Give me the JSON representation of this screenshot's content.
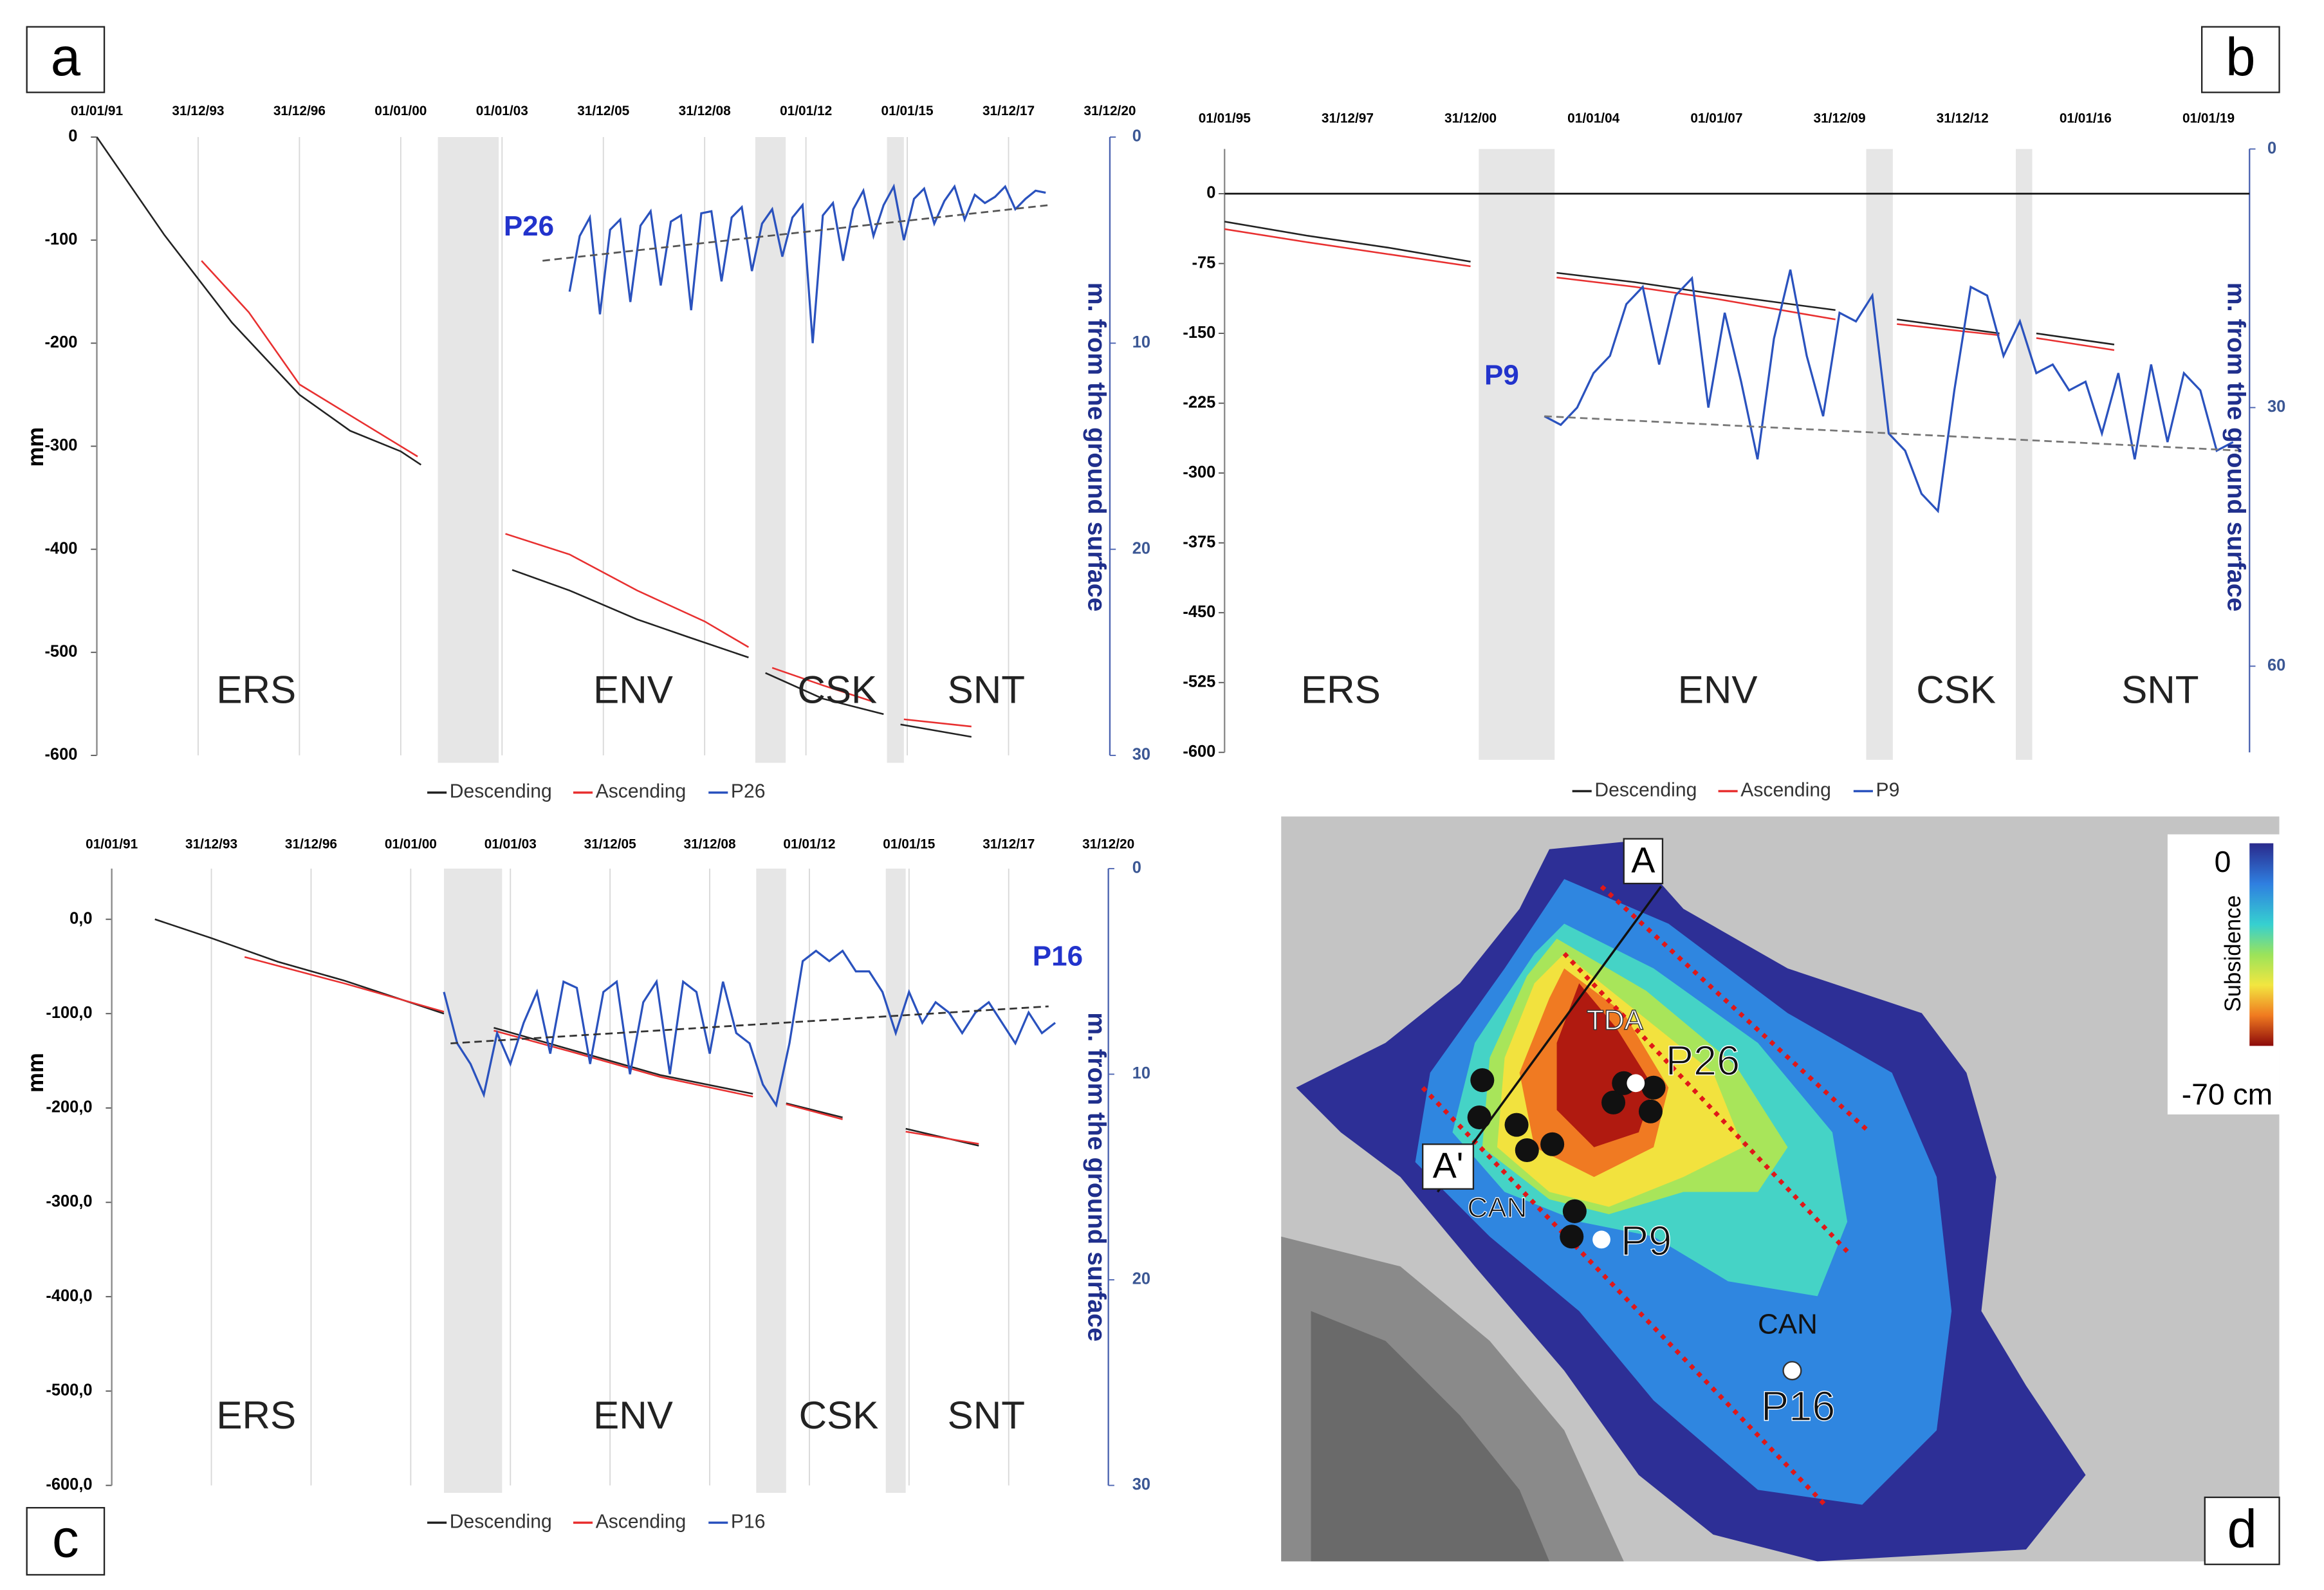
{
  "chart_data": [
    {
      "type": "line",
      "panel_label": "a",
      "point_label": "P26",
      "y_label": "mm",
      "y2_label": "m. from the ground surface",
      "annotations": [
        "ERS",
        "ENV",
        "CSK",
        "SNT"
      ],
      "xlim": [
        1991.0,
        2021.0
      ],
      "xticks": [
        {
          "value": 1991.0,
          "label": "01/01/91"
        },
        {
          "value": 1994.0,
          "label": "31/12/93"
        },
        {
          "value": 1997.0,
          "label": "31/12/96"
        },
        {
          "value": 2000.0,
          "label": "01/01/00"
        },
        {
          "value": 2003.0,
          "label": "01/01/03"
        },
        {
          "value": 2006.0,
          "label": "31/12/05"
        },
        {
          "value": 2009.0,
          "label": "31/12/08"
        },
        {
          "value": 2012.0,
          "label": "01/01/12"
        },
        {
          "value": 2015.0,
          "label": "01/01/15"
        },
        {
          "value": 2018.0,
          "label": "31/12/17"
        },
        {
          "value": 2021.0,
          "label": "31/12/20"
        }
      ],
      "ylim": [
        -600,
        0
      ],
      "yticks": [
        0,
        -100,
        -200,
        -300,
        -400,
        -500,
        -600
      ],
      "y2lim": [
        0,
        30
      ],
      "y2ticks": [
        0,
        10,
        20,
        30
      ],
      "y2_inverted": true,
      "grid": true,
      "zero_line": false,
      "shaded": [
        [
          2001.1,
          2002.9
        ],
        [
          2010.5,
          2011.4
        ],
        [
          2014.4,
          2014.9
        ]
      ],
      "series": [
        {
          "name": "Descending",
          "color": "#222222",
          "x": [
            1991.0,
            1993.0,
            1995.0,
            1997.0,
            1998.5,
            2000.0,
            2000.6,
            2002.0,
            2003.3,
            2005.0,
            2007.0,
            2008.5,
            2010.3,
            2010.5,
            2010.8,
            2012.5,
            2014.3,
            2014.5,
            2014.8,
            2016.9
          ],
          "values": [
            0,
            -95,
            -180,
            -250,
            -285,
            -305,
            -318,
            null,
            -420,
            -440,
            -468,
            -485,
            -505,
            null,
            -520,
            -545,
            -560,
            null,
            -570,
            -582
          ]
        },
        {
          "name": "Ascending",
          "color": "#e83030",
          "x": [
            1994.1,
            1995.5,
            1997.0,
            1999.0,
            2000.5,
            2002.0,
            2003.1,
            2005.0,
            2007.0,
            2009.0,
            2010.3,
            2010.6,
            2011.0,
            2012.5,
            2014.0,
            2014.5,
            2014.9,
            2016.9
          ],
          "values": [
            -120,
            -170,
            -240,
            -280,
            -310,
            null,
            -385,
            -405,
            -440,
            -470,
            -495,
            null,
            -515,
            -532,
            -548,
            null,
            -565,
            -572
          ]
        },
        {
          "name": "P26",
          "color": "#2a52be",
          "axis": "y2",
          "x": [
            2005.0,
            2005.3,
            2005.6,
            2005.9,
            2006.2,
            2006.5,
            2006.8,
            2007.1,
            2007.4,
            2007.7,
            2008.0,
            2008.3,
            2008.6,
            2008.9,
            2009.2,
            2009.5,
            2009.8,
            2010.1,
            2010.4,
            2010.7,
            2011.0,
            2011.3,
            2011.6,
            2011.9,
            2012.2,
            2012.5,
            2012.8,
            2013.1,
            2013.4,
            2013.7,
            2014.0,
            2014.3,
            2014.6,
            2014.9,
            2015.2,
            2015.5,
            2015.8,
            2016.1,
            2016.4,
            2016.7,
            2017.0,
            2017.3,
            2017.6,
            2017.9,
            2018.2,
            2018.5,
            2018.8,
            2019.1
          ],
          "values": [
            7.5,
            4.8,
            3.9,
            8.6,
            4.5,
            4.0,
            8.0,
            4.3,
            3.6,
            7.2,
            4.1,
            3.8,
            8.4,
            3.7,
            3.6,
            7.0,
            3.9,
            3.4,
            6.5,
            4.2,
            3.5,
            5.8,
            3.9,
            3.3,
            10.0,
            3.8,
            3.2,
            6.0,
            3.5,
            2.6,
            4.8,
            3.3,
            2.4,
            5.0,
            3.0,
            2.5,
            4.2,
            3.1,
            2.4,
            4.0,
            2.8,
            3.2,
            2.9,
            2.4,
            3.5,
            3.0,
            2.6,
            2.7
          ]
        }
      ],
      "trendline": {
        "color": "#555555",
        "axis": "y2",
        "x": [
          2004.2,
          2019.2
        ],
        "values": [
          6.0,
          3.3
        ]
      }
    },
    {
      "type": "line",
      "panel_label": "b",
      "point_label": "P9",
      "y2_label": "m. from the ground surface",
      "annotations": [
        "ERS",
        "ENV",
        "CSK",
        "SNT"
      ],
      "xlim": [
        1995.0,
        2020.0
      ],
      "xticks": [
        {
          "value": 1995.0,
          "label": "01/01/95"
        },
        {
          "value": 1998.0,
          "label": "31/12/97"
        },
        {
          "value": 2001.0,
          "label": "31/12/00"
        },
        {
          "value": 2004.0,
          "label": "01/01/04"
        },
        {
          "value": 2007.0,
          "label": "01/01/07"
        },
        {
          "value": 2010.0,
          "label": "31/12/09"
        },
        {
          "value": 2013.0,
          "label": "31/12/12"
        },
        {
          "value": 2016.0,
          "label": "01/01/16"
        },
        {
          "value": 2019.0,
          "label": "01/01/19"
        }
      ],
      "ylim": [
        -600,
        48
      ],
      "yticks": [
        0,
        -75,
        -150,
        -225,
        -300,
        -375,
        -450,
        -525,
        -600
      ],
      "y2lim": [
        0,
        70
      ],
      "y2ticks": [
        0,
        30,
        60
      ],
      "y2_inverted": true,
      "grid": false,
      "zero_line": true,
      "shaded": [
        [
          2001.2,
          2003.05
        ],
        [
          2010.65,
          2011.3
        ],
        [
          2014.3,
          2014.7
        ]
      ],
      "series": [
        {
          "name": "Descending",
          "color": "#222222",
          "x": [
            1995.0,
            1997.0,
            1999.0,
            2001.0,
            2002.0,
            2003.1,
            2005.0,
            2007.0,
            2009.9,
            2010.8,
            2011.4,
            2013.9,
            2014.4,
            2014.8,
            2016.7
          ],
          "values": [
            -30,
            -45,
            -58,
            -73,
            null,
            -85,
            -95,
            -108,
            -125,
            null,
            -135,
            -150,
            null,
            -150,
            -162
          ]
        },
        {
          "name": "Ascending",
          "color": "#e83030",
          "x": [
            1995.0,
            1997.0,
            1999.0,
            2001.0,
            2002.0,
            2003.1,
            2005.0,
            2007.0,
            2009.9,
            2010.8,
            2011.4,
            2013.9,
            2014.4,
            2014.8,
            2016.7
          ],
          "values": [
            -38,
            -52,
            -65,
            -78,
            null,
            -90,
            -100,
            -113,
            -135,
            null,
            -140,
            -152,
            null,
            -155,
            -168
          ]
        },
        {
          "name": "P9",
          "color": "#2a52be",
          "axis": "y2",
          "x": [
            2002.8,
            2003.2,
            2003.6,
            2004.0,
            2004.4,
            2004.8,
            2005.2,
            2005.6,
            2006.0,
            2006.4,
            2006.8,
            2007.2,
            2007.6,
            2008.0,
            2008.4,
            2008.8,
            2009.2,
            2009.6,
            2010.0,
            2010.4,
            2010.8,
            2011.2,
            2011.6,
            2012.0,
            2012.4,
            2012.8,
            2013.2,
            2013.6,
            2014.0,
            2014.4,
            2014.8,
            2015.2,
            2015.6,
            2016.0,
            2016.4,
            2016.8,
            2017.2,
            2017.6,
            2018.0,
            2018.4,
            2018.8,
            2019.2,
            2019.6
          ],
          "values": [
            31,
            32,
            30,
            26,
            24,
            18,
            16,
            25,
            17,
            15,
            30,
            19,
            27,
            36,
            22,
            14,
            24,
            31,
            19,
            20,
            17,
            33,
            35,
            40,
            42,
            28,
            16,
            17,
            24,
            20,
            26,
            25,
            28,
            27,
            33,
            26,
            36,
            25,
            34,
            26,
            28,
            35,
            34
          ]
        }
      ],
      "trendline": {
        "color": "#777777",
        "axis": "y2",
        "x": [
          2002.8,
          2019.8
        ],
        "values": [
          31,
          35
        ]
      }
    },
    {
      "type": "line",
      "panel_label": "c",
      "point_label": "P16",
      "y_label": "mm",
      "y2_label": "m. from the ground surface",
      "annotations": [
        "ERS",
        "ENV",
        "CSK",
        "SNT"
      ],
      "xlim": [
        1991.0,
        2021.0
      ],
      "xticks": [
        {
          "value": 1991.0,
          "label": "01/01/91"
        },
        {
          "value": 1994.0,
          "label": "31/12/93"
        },
        {
          "value": 1997.0,
          "label": "31/12/96"
        },
        {
          "value": 2000.0,
          "label": "01/01/00"
        },
        {
          "value": 2003.0,
          "label": "01/01/03"
        },
        {
          "value": 2006.0,
          "label": "31/12/05"
        },
        {
          "value": 2009.0,
          "label": "31/12/08"
        },
        {
          "value": 2012.0,
          "label": "01/01/12"
        },
        {
          "value": 2015.0,
          "label": "01/01/15"
        },
        {
          "value": 2018.0,
          "label": "31/12/17"
        },
        {
          "value": 2021.0,
          "label": "31/12/20"
        }
      ],
      "ylim": [
        -600,
        53.7
      ],
      "yticks": [
        {
          "value": 0,
          "label": "0,0"
        },
        {
          "value": -100,
          "label": "-100,0"
        },
        {
          "value": -200,
          "label": "-200,0"
        },
        {
          "value": -300,
          "label": "-300,0"
        },
        {
          "value": -400,
          "label": "-400,0"
        },
        {
          "value": -500,
          "label": "-500,0"
        },
        {
          "value": -600,
          "label": "-600,0"
        }
      ],
      "y2lim": [
        0,
        30
      ],
      "y2ticks": [
        0,
        10,
        20,
        30
      ],
      "y2_inverted": true,
      "grid": true,
      "zero_line": false,
      "shaded": [
        [
          2001.0,
          2002.75
        ],
        [
          2010.4,
          2011.3
        ],
        [
          2014.3,
          2014.9
        ]
      ],
      "series": [
        {
          "name": "Descending",
          "color": "#222222",
          "x": [
            1992.3,
            1994.0,
            1996.0,
            1998.0,
            2001.0,
            2001.8,
            2002.5,
            2005.0,
            2007.5,
            2010.3,
            2010.8,
            2011.3,
            2013.0,
            2014.0,
            2014.9,
            2017.1
          ],
          "values": [
            0,
            -20,
            -45,
            -65,
            -100,
            null,
            -115,
            -140,
            -165,
            -185,
            null,
            -195,
            -210,
            null,
            -222,
            -240
          ]
        },
        {
          "name": "Ascending",
          "color": "#e83030",
          "x": [
            1995.0,
            1998.0,
            2001.0,
            2001.8,
            2002.5,
            2005.0,
            2007.5,
            2010.3,
            2010.8,
            2011.3,
            2013.0,
            2014.0,
            2014.9,
            2017.1
          ],
          "values": [
            -40,
            -68,
            -98,
            null,
            -118,
            -142,
            -167,
            -188,
            null,
            -196,
            -212,
            null,
            -225,
            -238
          ]
        },
        {
          "name": "P16",
          "color": "#2a52be",
          "axis": "y2",
          "x": [
            2001.0,
            2001.4,
            2001.8,
            2002.2,
            2002.6,
            2003.0,
            2003.4,
            2003.8,
            2004.2,
            2004.6,
            2005.0,
            2005.4,
            2005.8,
            2006.2,
            2006.6,
            2007.0,
            2007.4,
            2007.8,
            2008.2,
            2008.6,
            2009.0,
            2009.4,
            2009.8,
            2010.2,
            2010.6,
            2011.0,
            2011.4,
            2011.8,
            2012.2,
            2012.6,
            2013.0,
            2013.4,
            2013.8,
            2014.2,
            2014.6,
            2015.0,
            2015.4,
            2015.8,
            2016.2,
            2016.6,
            2017.0,
            2017.4,
            2017.8,
            2018.2,
            2018.6,
            2019.0,
            2019.4
          ],
          "values": [
            6.0,
            8.5,
            9.5,
            11.0,
            8.0,
            9.5,
            7.5,
            6.0,
            9.0,
            5.5,
            5.8,
            9.5,
            6.0,
            5.5,
            10.0,
            6.5,
            5.5,
            10.0,
            5.5,
            6.0,
            9.0,
            5.5,
            8.0,
            8.5,
            10.5,
            11.5,
            8.5,
            4.5,
            4.0,
            4.5,
            4.0,
            5.0,
            5.0,
            6.0,
            8.0,
            6.0,
            7.5,
            6.5,
            7.0,
            8.0,
            7.0,
            6.5,
            7.5,
            8.5,
            7.0,
            8.0,
            7.5
          ]
        }
      ],
      "trendline": {
        "color": "#333333",
        "axis": "y2",
        "x": [
          2001.2,
          2019.2
        ],
        "values": [
          8.5,
          6.7
        ]
      }
    }
  ],
  "map": {
    "panel_label": "d",
    "section_start": "A",
    "section_end": "A'",
    "labels": [
      "TDA",
      "P26",
      "CAN",
      "P9",
      "CAN",
      "P16"
    ],
    "colorbar": {
      "max_label": "0",
      "min_label": "-70 cm",
      "title": "Subsidence"
    }
  }
}
